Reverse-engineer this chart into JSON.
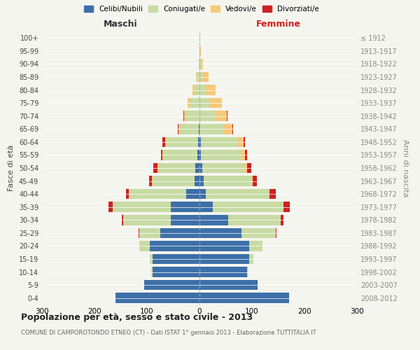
{
  "age_groups": [
    "0-4",
    "5-9",
    "10-14",
    "15-19",
    "20-24",
    "25-29",
    "30-34",
    "35-39",
    "40-44",
    "45-49",
    "50-54",
    "55-59",
    "60-64",
    "65-69",
    "70-74",
    "75-79",
    "80-84",
    "85-89",
    "90-94",
    "95-99",
    "100+"
  ],
  "birth_years": [
    "2008-2012",
    "2003-2007",
    "1998-2002",
    "1993-1997",
    "1988-1992",
    "1983-1987",
    "1978-1982",
    "1973-1977",
    "1968-1972",
    "1963-1967",
    "1958-1962",
    "1953-1957",
    "1948-1952",
    "1943-1947",
    "1938-1942",
    "1933-1937",
    "1928-1932",
    "1923-1927",
    "1918-1922",
    "1913-1917",
    "≤ 1912"
  ],
  "colors": {
    "celibi": "#3d6fa8",
    "coniugati": "#c8dba4",
    "vedovi": "#f5c97a",
    "divorziati": "#cc2222"
  },
  "males": {
    "celibi": [
      160,
      105,
      90,
      90,
      95,
      75,
      55,
      55,
      25,
      10,
      8,
      4,
      3,
      2,
      0,
      0,
      0,
      0,
      0,
      0,
      0
    ],
    "coniugati": [
      0,
      0,
      2,
      5,
      20,
      40,
      90,
      110,
      110,
      80,
      70,
      65,
      60,
      35,
      25,
      18,
      10,
      5,
      2,
      0,
      0
    ],
    "vedovi": [
      0,
      0,
      0,
      0,
      0,
      0,
      0,
      0,
      0,
      1,
      2,
      2,
      3,
      3,
      5,
      5,
      3,
      2,
      0,
      0,
      0
    ],
    "divorziati": [
      0,
      0,
      0,
      0,
      0,
      1,
      3,
      8,
      5,
      5,
      8,
      3,
      5,
      1,
      1,
      0,
      0,
      0,
      0,
      0,
      0
    ]
  },
  "females": {
    "nubili": [
      170,
      110,
      90,
      95,
      95,
      80,
      55,
      25,
      12,
      8,
      5,
      3,
      2,
      0,
      0,
      0,
      0,
      0,
      0,
      0,
      0
    ],
    "coniugate": [
      0,
      0,
      2,
      8,
      25,
      65,
      100,
      135,
      120,
      90,
      80,
      75,
      70,
      45,
      30,
      20,
      12,
      5,
      2,
      0,
      0
    ],
    "vedove": [
      0,
      0,
      0,
      0,
      0,
      0,
      0,
      0,
      1,
      3,
      5,
      8,
      12,
      18,
      22,
      22,
      18,
      12,
      5,
      2,
      0
    ],
    "divorziate": [
      0,
      0,
      0,
      0,
      0,
      1,
      5,
      12,
      12,
      8,
      8,
      5,
      3,
      1,
      1,
      1,
      1,
      0,
      0,
      0,
      0
    ]
  },
  "xlim": 300,
  "title": "Popolazione per età, sesso e stato civile - 2013",
  "subtitle": "COMUNE DI CAMPOROTONDO ETNEO (CT) - Dati ISTAT 1° gennaio 2013 - Elaborazione TUTTITALIA.IT",
  "ylabel_left": "Fasce di età",
  "ylabel_right": "Anni di nascita",
  "xlabel_male": "Maschi",
  "xlabel_female": "Femmine",
  "legend_labels": [
    "Celibi/Nubili",
    "Coniugati/e",
    "Vedovi/e",
    "Divorziati/e"
  ],
  "background_color": "#f5f5f0",
  "maschi_color": "#333333",
  "femmine_color": "#cc2222"
}
